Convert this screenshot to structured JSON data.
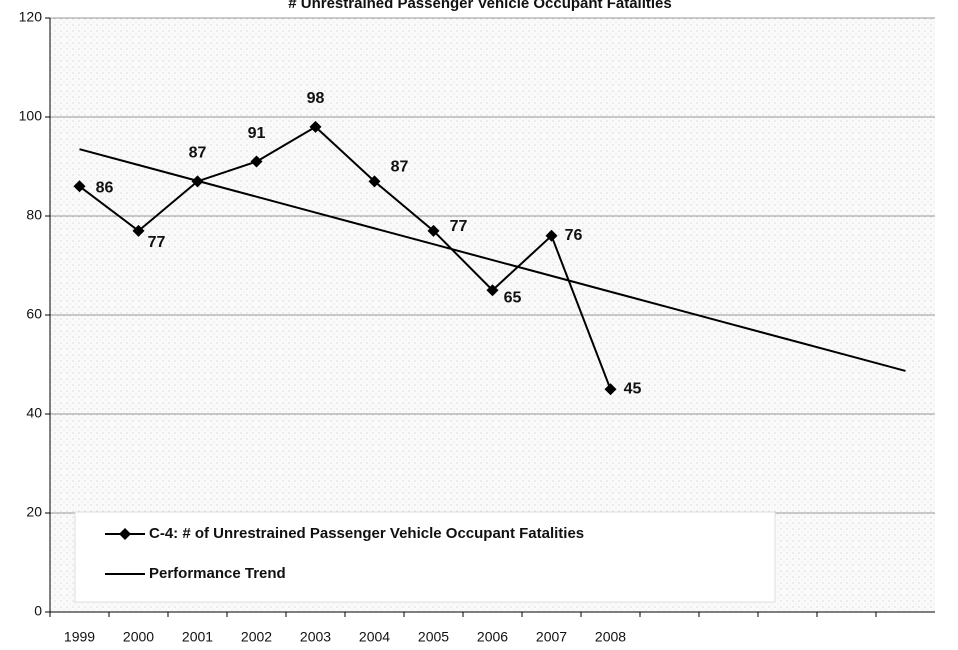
{
  "chart_data": {
    "type": "line",
    "title": "# Unrestrained Passenger Vehicle Occupant Fatalities",
    "categories": [
      "1999",
      "2000",
      "2001",
      "2002",
      "2003",
      "2004",
      "2005",
      "2006",
      "2007",
      "2008",
      null,
      null,
      null,
      null,
      null
    ],
    "series": [
      {
        "name": "C-4: # of Unrestrained Passenger Vehicle Occupant Fatalities",
        "color": "#000000",
        "values": [
          86,
          77,
          87,
          91,
          98,
          87,
          77,
          65,
          76,
          45,
          null,
          null,
          null,
          null,
          null
        ],
        "markers": true,
        "data_labels": true
      },
      {
        "name": "Performance Trend",
        "color": "#000000",
        "values": [
          93.5,
          90.3,
          87.1,
          83.9,
          80.7,
          77.5,
          74.3,
          71.1,
          67.9,
          64.7,
          61.5,
          58.3,
          55.1,
          51.9,
          48.7
        ],
        "markers": false,
        "data_labels": false
      }
    ],
    "ylim": [
      0,
      120
    ],
    "yticks": [
      0,
      20,
      40,
      60,
      80,
      100,
      120
    ],
    "grid": true,
    "legend": "lower left"
  }
}
